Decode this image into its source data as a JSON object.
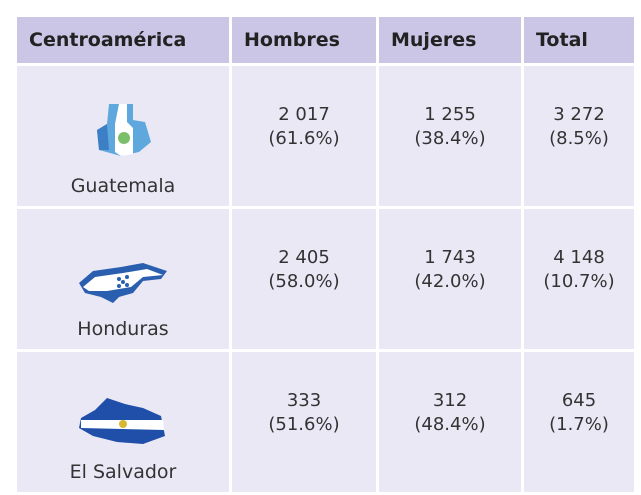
{
  "table": {
    "header": [
      "Centroamérica",
      "Hombres",
      "Mujeres",
      "Total"
    ],
    "rows": [
      {
        "name": "Guatemala",
        "cells": [
          {
            "value": "2 017",
            "pct": "(61.6%)"
          },
          {
            "value": "1 255",
            "pct": "(38.4%)"
          },
          {
            "value": "3 272",
            "pct": "(8.5%)"
          }
        ]
      },
      {
        "name": "Honduras",
        "cells": [
          {
            "value": "2 405",
            "pct": "(58.0%)"
          },
          {
            "value": "1 743",
            "pct": "(42.0%)"
          },
          {
            "value": "4 148",
            "pct": "(10.7%)"
          }
        ]
      },
      {
        "name": "El Salvador",
        "cells": [
          {
            "value": "333",
            "pct": "(51.6%)"
          },
          {
            "value": "312",
            "pct": "(48.4%)"
          },
          {
            "value": "645",
            "pct": "(1.7%)"
          }
        ]
      }
    ]
  }
}
